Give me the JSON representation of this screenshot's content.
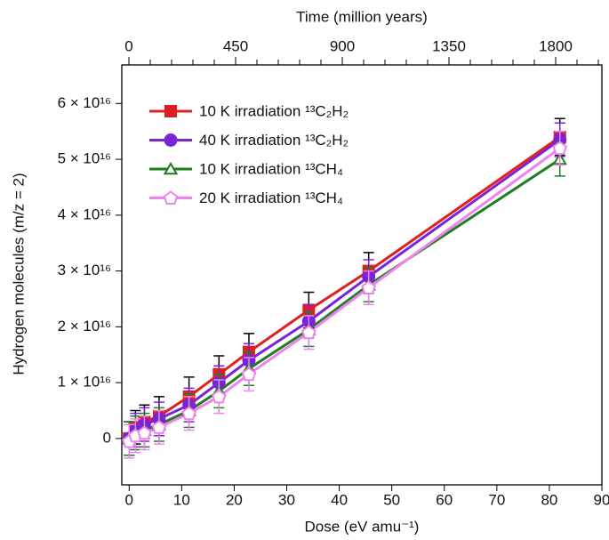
{
  "chart_data": {
    "type": "line",
    "xlabel": "Dose (eV amu⁻¹)",
    "ylabel": "Hydrogen molecules (m/z = 2)",
    "x2label": "Time (million years)",
    "x": [
      0,
      1.2,
      2.9,
      5.7,
      11.4,
      17.1,
      22.8,
      34.2,
      45.6,
      82
    ],
    "series": [
      {
        "name": "10 K irradiation ¹³C₂H₂",
        "color": "#e02020",
        "error_color": "#000000",
        "marker": "square",
        "filled": true,
        "values": [
          0,
          2000000000000000.0,
          3000000000000000.0,
          4000000000000000.0,
          7500000000000000.0,
          1.15e+16,
          1.55e+16,
          2.3e+16,
          3e+16,
          5.4e+16
        ],
        "errors": [
          3000000000000000.0,
          3000000000000000.0,
          3000000000000000.0,
          3500000000000000.0,
          3500000000000000.0,
          3300000000000000.0,
          3300000000000000.0,
          3200000000000000.0,
          3300000000000000.0,
          3300000000000000.0
        ]
      },
      {
        "name": "40 K irradiation ¹³C₂H₂",
        "color": "#7b22dd",
        "error_color": "#7b22dd",
        "marker": "circle",
        "filled": true,
        "values": [
          0,
          1500000000000000.0,
          2500000000000000.0,
          3500000000000000.0,
          6000000000000000.0,
          1e+16,
          1.4e+16,
          2.1e+16,
          2.9e+16,
          5.35e+16
        ],
        "errors": [
          3000000000000000.0,
          3000000000000000.0,
          3000000000000000.0,
          3000000000000000.0,
          3000000000000000.0,
          3000000000000000.0,
          3000000000000000.0,
          3000000000000000.0,
          3000000000000000.0,
          3000000000000000.0
        ]
      },
      {
        "name": "10 K irradiation  ¹³CH₄",
        "color": "#1e7d1e",
        "error_color": "#1e7d1e",
        "marker": "triangle",
        "filled": false,
        "values": [
          0,
          1000000000000000.0,
          1500000000000000.0,
          2500000000000000.0,
          5000000000000000.0,
          8500000000000000.0,
          1.25e+16,
          1.95e+16,
          2.75e+16,
          5e+16
        ],
        "errors": [
          3000000000000000.0,
          3000000000000000.0,
          3000000000000000.0,
          3000000000000000.0,
          3000000000000000.0,
          3000000000000000.0,
          3000000000000000.0,
          3000000000000000.0,
          3000000000000000.0,
          3000000000000000.0
        ]
      },
      {
        "name": "20 K irradiation  ¹³CH₄",
        "color": "#ee82ee",
        "error_color": "#ee82ee",
        "marker": "pentagon",
        "filled": false,
        "values": [
          -500000000000000.0,
          500000000000000.0,
          1000000000000000.0,
          2000000000000000.0,
          4500000000000000.0,
          7500000000000000.0,
          1.15e+16,
          1.9e+16,
          2.7e+16,
          5.2e+16
        ],
        "errors": [
          3000000000000000.0,
          3000000000000000.0,
          3000000000000000.0,
          3000000000000000.0,
          3000000000000000.0,
          3000000000000000.0,
          3000000000000000.0,
          3000000000000000.0,
          3000000000000000.0,
          3000000000000000.0
        ]
      }
    ],
    "xlim": [
      -1.4,
      90
    ],
    "xticks": [
      0,
      10,
      20,
      30,
      40,
      50,
      60,
      70,
      80,
      90
    ],
    "x2lim": [
      -30,
      1995
    ],
    "x2ticks": [
      0,
      450,
      900,
      1350,
      1800
    ],
    "x2minorticks": [
      90,
      180,
      270,
      360,
      540,
      630,
      720,
      810,
      990,
      1080,
      1170,
      1260,
      1440,
      1530,
      1620,
      1710,
      1890,
      1980
    ],
    "ylim": [
      -8300000000000000.0,
      6.69e+16
    ],
    "yticks": [
      0,
      {
        "value": 1e+16,
        "label": "1 × 10¹⁶"
      },
      {
        "value": 2e+16,
        "label": "2 × 10¹⁶"
      },
      {
        "value": 3e+16,
        "label": "3 × 10¹⁶"
      },
      {
        "value": 4e+16,
        "label": "4 × 10¹⁶"
      },
      {
        "value": 5e+16,
        "label": "5 × 10¹⁶"
      },
      {
        "value": 6e+16,
        "label": "6 × 10¹⁶"
      }
    ],
    "legend": "upper-left"
  }
}
